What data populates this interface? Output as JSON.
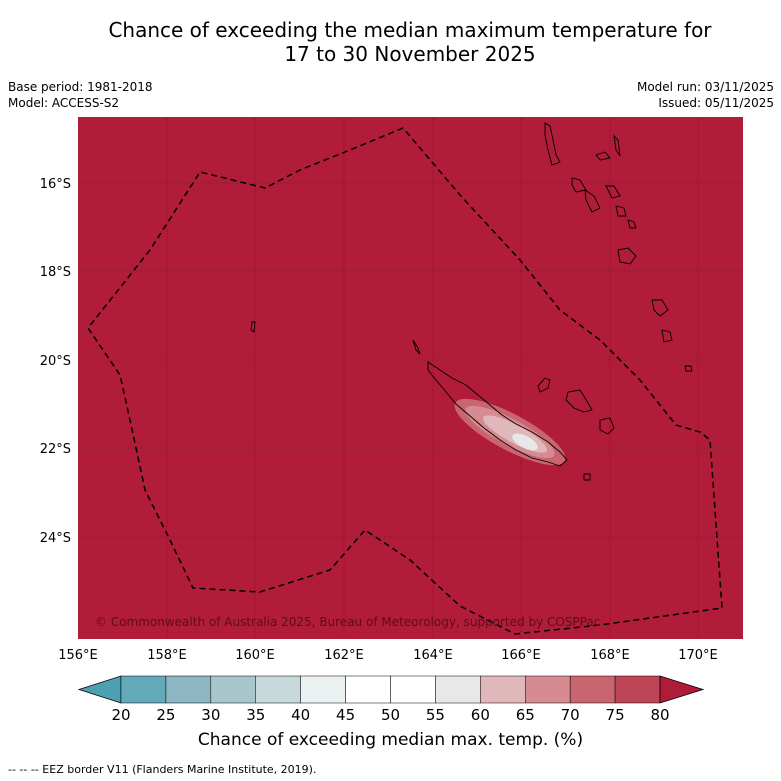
{
  "title_line1": "Chance of exceeding the median maximum temperature for",
  "title_line2": "17 to 30 November 2025",
  "base_period": "Base period: 1981-2018",
  "model": "Model: ACCESS-S2",
  "model_run": "Model run: 03/11/2025",
  "issued": "Issued: 05/11/2025",
  "copyright": "© Commonwealth of Australia 2025, Bureau of Meteorology, supported by COSPPac",
  "latitude_labels": [
    "16°S",
    "18°S",
    "20°S",
    "22°S",
    "24°S"
  ],
  "longitude_labels": [
    "156°E",
    "158°E",
    "160°E",
    "162°E",
    "164°E",
    "166°E",
    "168°E",
    "170°E"
  ],
  "colorbar": {
    "ticks": [
      "20",
      "25",
      "30",
      "35",
      "40",
      "45",
      "50",
      "55",
      "60",
      "65",
      "70",
      "75",
      "80"
    ],
    "colors": [
      "#63a9b9",
      "#8bb6c2",
      "#a8c7cc",
      "#c8d9dc",
      "#ebf0f1",
      "#ffffff",
      "#ffffff",
      "#e8e8e8",
      "#e0b8bc",
      "#d68a92",
      "#c9656f",
      "#be4556"
    ],
    "under_color": "#4d9fb2",
    "over_color": "#b01c38",
    "title": "Chance of exceeding median max. temp. (%)"
  },
  "map_fill_color": "#b11c38",
  "eez_note": "--  --  -- EEZ border V11 (Flanders Marine Institute, 2019)."
}
